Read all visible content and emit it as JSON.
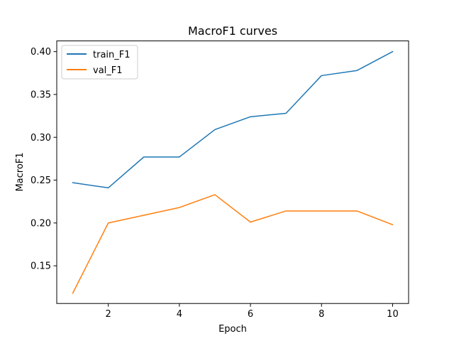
{
  "chart_data": {
    "type": "line",
    "title": "MacroF1 curves",
    "xlabel": "Epoch",
    "ylabel": "MacroF1",
    "x": [
      1,
      2,
      3,
      4,
      5,
      6,
      7,
      8,
      9,
      10
    ],
    "xlim": [
      0.55,
      10.45
    ],
    "ylim": [
      0.106,
      0.4125
    ],
    "xticks": [
      2,
      4,
      6,
      8,
      10
    ],
    "yticks": [
      0.15,
      0.2,
      0.25,
      0.3,
      0.35,
      0.4
    ],
    "ytick_labels": [
      "0.15",
      "0.20",
      "0.25",
      "0.30",
      "0.35",
      "0.40"
    ],
    "grid": false,
    "legend_position": "top-left",
    "series": [
      {
        "name": "train_F1",
        "color": "#1f77b4",
        "values": [
          0.247,
          0.241,
          0.277,
          0.277,
          0.309,
          0.324,
          0.328,
          0.372,
          0.378,
          0.4
        ]
      },
      {
        "name": "val_F1",
        "color": "#ff7f0e",
        "values": [
          0.118,
          0.2,
          0.209,
          0.218,
          0.233,
          0.201,
          0.214,
          0.214,
          0.214,
          0.198
        ]
      }
    ]
  }
}
